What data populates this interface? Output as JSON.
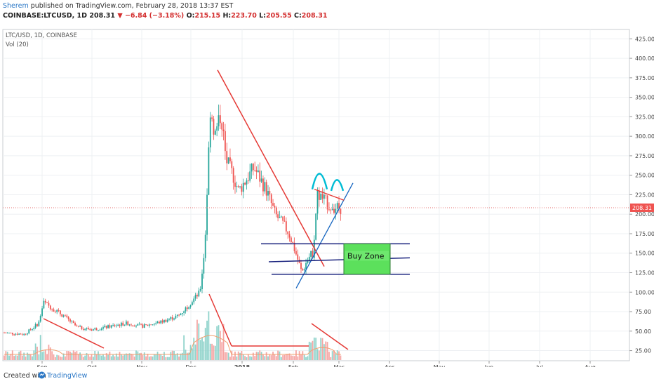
{
  "header": {
    "author": "Sherem",
    "published": " published on TradingView.com, February 28, 2018 13:37 EST",
    "symbol": "COINBASE:LTCUSD, 1D",
    "last": "208.31",
    "change": "▼ −6.84 (−3.18%)",
    "ohlc_o_label": "O:",
    "ohlc_o": "215.15",
    "ohlc_h_label": "H:",
    "ohlc_h": "223.70",
    "ohlc_l_label": "L:",
    "ohlc_l": "205.55",
    "ohlc_c_label": "C:",
    "ohlc_c": "208.31"
  },
  "pane": {
    "symbol_label": "LTC/USD, 1D, COINBASE",
    "volume_label": "Vol (20)"
  },
  "footer": {
    "created_with": "Created with",
    "brand": "TradingView"
  },
  "colors": {
    "up": "#26a69a",
    "down": "#ef5350",
    "vol_up": "#8fd3cb",
    "vol_down": "#f5a5a3",
    "trend_red": "#e53935",
    "channel_blue": "#1a237e",
    "buy_zone_fill": "#5ce05c",
    "cyan_arc": "#00bcd4",
    "price_line": "#e57373",
    "ma_line": "#f0a070",
    "grid": "#eef0f3"
  },
  "chart_data": {
    "type": "candlestick",
    "x_tick_labels": [
      "Sep",
      "Oct",
      "Nov",
      "Dec",
      "2018",
      "Feb",
      "Mar",
      "Apr",
      "May",
      "Jun",
      "Jul",
      "Aug"
    ],
    "y_tick_labels": [
      "425.00",
      "400.00",
      "375.00",
      "350.00",
      "325.00",
      "300.00",
      "275.00",
      "250.00",
      "225.00",
      "200.00",
      "175.00",
      "150.00",
      "125.00",
      "100.00",
      "75.00",
      "50.00",
      "25.00"
    ],
    "y_ticks": [
      425,
      400,
      375,
      350,
      325,
      300,
      275,
      250,
      225,
      200,
      175,
      150,
      125,
      100,
      75,
      50,
      25
    ],
    "ylim": [
      12,
      437
    ],
    "last_price": 208.31,
    "last_price_label": "208.31",
    "close_path": [
      {
        "month": "Aug",
        "close": 48
      },
      {
        "month": "Aug",
        "close": 46
      },
      {
        "month": "Sep",
        "close": 60
      },
      {
        "month": "Sep",
        "close": 87
      },
      {
        "month": "Sep",
        "close": 70
      },
      {
        "month": "Sep",
        "close": 55
      },
      {
        "month": "Oct",
        "close": 52
      },
      {
        "month": "Oct",
        "close": 55
      },
      {
        "month": "Oct",
        "close": 60
      },
      {
        "month": "Oct",
        "close": 57
      },
      {
        "month": "Nov",
        "close": 56
      },
      {
        "month": "Nov",
        "close": 62
      },
      {
        "month": "Nov",
        "close": 70
      },
      {
        "month": "Nov",
        "close": 85
      },
      {
        "month": "Dec",
        "close": 100
      },
      {
        "month": "Dec",
        "close": 160
      },
      {
        "month": "Dec",
        "close": 340
      },
      {
        "month": "Dec",
        "close": 300
      },
      {
        "month": "Dec",
        "close": 330
      },
      {
        "month": "Dec",
        "close": 270
      },
      {
        "month": "Dec",
        "close": 250
      },
      {
        "month": "Dec",
        "close": 230
      },
      {
        "month": "2018",
        "close": 250
      },
      {
        "month": "2018",
        "close": 260
      },
      {
        "month": "2018",
        "close": 230
      },
      {
        "month": "2018",
        "close": 200
      },
      {
        "month": "2018",
        "close": 185
      },
      {
        "month": "2018",
        "close": 175
      },
      {
        "month": "2018",
        "close": 160
      },
      {
        "month": "Feb",
        "close": 140
      },
      {
        "month": "Feb",
        "close": 125
      },
      {
        "month": "Feb",
        "close": 145
      },
      {
        "month": "Feb",
        "close": 150
      },
      {
        "month": "Feb",
        "close": 225
      },
      {
        "month": "Feb",
        "close": 220
      },
      {
        "month": "Feb",
        "close": 210
      },
      {
        "month": "Feb",
        "close": 208
      }
    ],
    "series": [
      {
        "name": "LTC/USD"
      },
      {
        "name": "Vol (20)"
      }
    ],
    "annotations": [
      {
        "type": "text-box",
        "text": "Buy Zone"
      },
      {
        "type": "trendline",
        "color": "red",
        "from": {
          "month": "Dec",
          "price": 385
        },
        "to": {
          "month": "Feb",
          "price": 133
        }
      },
      {
        "type": "trendline",
        "color": "blue",
        "from": {
          "month": "Feb",
          "price": 105
        },
        "to": {
          "month": "Mar",
          "price": 240
        }
      },
      {
        "type": "channel",
        "color": "blue",
        "levels": [
          162,
          142,
          123
        ]
      },
      {
        "type": "rectangle",
        "label": "Buy Zone",
        "price_top": 162,
        "price_bottom": 123
      },
      {
        "type": "arcs",
        "color": "cyan",
        "count": 2
      }
    ]
  }
}
